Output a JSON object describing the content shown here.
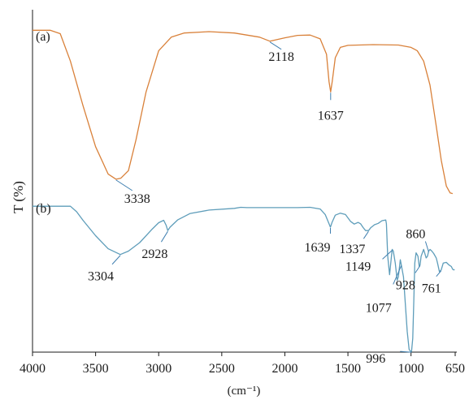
{
  "chart_data": {
    "type": "line",
    "xlabel": "(cm⁻¹)",
    "ylabel": "T (%)",
    "xlim": [
      4000,
      650
    ],
    "x_ticks": [
      "4000",
      "3500",
      "3000",
      "2500",
      "2000",
      "1500",
      "1000",
      "650"
    ],
    "x_tick_values": [
      4000,
      3500,
      3000,
      2500,
      2000,
      1500,
      1000,
      650
    ],
    "grid": false,
    "series": [
      {
        "name": "(a)",
        "color": "#D9813A",
        "points": [
          [
            4000,
            94.0
          ],
          [
            3860,
            94.0
          ],
          [
            3780,
            93.0
          ],
          [
            3700,
            85.0
          ],
          [
            3600,
            72.0
          ],
          [
            3500,
            60.0
          ],
          [
            3400,
            52.0
          ],
          [
            3338,
            50.5
          ],
          [
            3300,
            50.8
          ],
          [
            3240,
            53.0
          ],
          [
            3180,
            62.0
          ],
          [
            3100,
            76.0
          ],
          [
            3000,
            88.0
          ],
          [
            2900,
            92.0
          ],
          [
            2800,
            93.2
          ],
          [
            2600,
            93.6
          ],
          [
            2400,
            93.2
          ],
          [
            2200,
            92.0
          ],
          [
            2118,
            90.8
          ],
          [
            2000,
            91.8
          ],
          [
            1900,
            92.5
          ],
          [
            1800,
            92.6
          ],
          [
            1720,
            91.5
          ],
          [
            1670,
            87.0
          ],
          [
            1650,
            79.0
          ],
          [
            1637,
            76.0
          ],
          [
            1625,
            79.0
          ],
          [
            1600,
            86.0
          ],
          [
            1560,
            89.0
          ],
          [
            1500,
            89.6
          ],
          [
            1300,
            89.8
          ],
          [
            1100,
            89.7
          ],
          [
            1000,
            89.0
          ],
          [
            950,
            88.0
          ],
          [
            900,
            85.0
          ],
          [
            850,
            78.0
          ],
          [
            800,
            66.0
          ],
          [
            760,
            56.0
          ],
          [
            720,
            48.5
          ],
          [
            690,
            46.5
          ],
          [
            670,
            46.3
          ]
        ]
      },
      {
        "name": "(b)",
        "color": "#5E9DBA",
        "points": [
          [
            4000,
            42.6
          ],
          [
            3800,
            42.6
          ],
          [
            3700,
            42.6
          ],
          [
            3650,
            41.0
          ],
          [
            3600,
            38.5
          ],
          [
            3500,
            34.0
          ],
          [
            3400,
            30.2
          ],
          [
            3304,
            28.5
          ],
          [
            3240,
            29.5
          ],
          [
            3150,
            32.0
          ],
          [
            3050,
            36.0
          ],
          [
            3000,
            37.8
          ],
          [
            2960,
            38.5
          ],
          [
            2940,
            37.0
          ],
          [
            2928,
            35.5
          ],
          [
            2910,
            36.5
          ],
          [
            2850,
            38.6
          ],
          [
            2750,
            40.5
          ],
          [
            2600,
            41.5
          ],
          [
            2400,
            42.0
          ],
          [
            2350,
            42.3
          ],
          [
            2300,
            42.2
          ],
          [
            2200,
            42.2
          ],
          [
            1900,
            42.2
          ],
          [
            1800,
            42.3
          ],
          [
            1720,
            41.8
          ],
          [
            1680,
            40.2
          ],
          [
            1650,
            37.5
          ],
          [
            1639,
            36.5
          ],
          [
            1625,
            38.0
          ],
          [
            1600,
            40.0
          ],
          [
            1560,
            40.6
          ],
          [
            1520,
            40.2
          ],
          [
            1480,
            38.2
          ],
          [
            1450,
            37.4
          ],
          [
            1420,
            37.9
          ],
          [
            1400,
            37.5
          ],
          [
            1380,
            36.4
          ],
          [
            1360,
            35.5
          ],
          [
            1337,
            35.5
          ],
          [
            1320,
            36.3
          ],
          [
            1290,
            37.2
          ],
          [
            1260,
            37.6
          ],
          [
            1230,
            38.4
          ],
          [
            1200,
            38.6
          ],
          [
            1195,
            37.5
          ],
          [
            1185,
            28.0
          ],
          [
            1170,
            22.6
          ],
          [
            1155,
            28.0
          ],
          [
            1149,
            30.0
          ],
          [
            1140,
            29.5
          ],
          [
            1125,
            26.0
          ],
          [
            1110,
            21.0
          ],
          [
            1100,
            22.0
          ],
          [
            1085,
            27.0
          ],
          [
            1077,
            25.5
          ],
          [
            1060,
            22.0
          ],
          [
            1045,
            14.0
          ],
          [
            1030,
            6.0
          ],
          [
            1015,
            0.8
          ],
          [
            1005,
            0.3
          ],
          [
            996,
            0.2
          ],
          [
            986,
            4.0
          ],
          [
            978,
            15.0
          ],
          [
            970,
            26.0
          ],
          [
            960,
            29.0
          ],
          [
            945,
            28.0
          ],
          [
            935,
            25.0
          ],
          [
            928,
            25.5
          ],
          [
            920,
            28.0
          ],
          [
            900,
            30.0
          ],
          [
            880,
            27.5
          ],
          [
            870,
            28.0
          ],
          [
            860,
            29.5
          ],
          [
            850,
            30.0
          ],
          [
            835,
            29.5
          ],
          [
            820,
            28.8
          ],
          [
            800,
            27.5
          ],
          [
            790,
            26.0
          ],
          [
            775,
            23.5
          ],
          [
            761,
            24.0
          ],
          [
            745,
            26.0
          ],
          [
            720,
            26.2
          ],
          [
            700,
            25.5
          ],
          [
            680,
            25.0
          ],
          [
            670,
            24.2
          ],
          [
            660,
            24.0
          ],
          [
            655,
            24.2
          ]
        ]
      }
    ],
    "annotations": [
      {
        "series": "(a)",
        "text": "3338",
        "x": 3338
      },
      {
        "series": "(a)",
        "text": "2118",
        "x": 2118
      },
      {
        "series": "(a)",
        "text": "1637",
        "x": 1637
      },
      {
        "series": "(b)",
        "text": "3304",
        "x": 3304
      },
      {
        "series": "(b)",
        "text": "2928",
        "x": 2928
      },
      {
        "series": "(b)",
        "text": "1639",
        "x": 1639
      },
      {
        "series": "(b)",
        "text": "1337",
        "x": 1337
      },
      {
        "series": "(b)",
        "text": "1149",
        "x": 1149
      },
      {
        "series": "(b)",
        "text": "1077",
        "x": 1077
      },
      {
        "series": "(b)",
        "text": "996",
        "x": 996
      },
      {
        "series": "(b)",
        "text": "928",
        "x": 928
      },
      {
        "series": "(b)",
        "text": "860",
        "x": 860
      },
      {
        "series": "(b)",
        "text": "761",
        "x": 761
      }
    ]
  }
}
